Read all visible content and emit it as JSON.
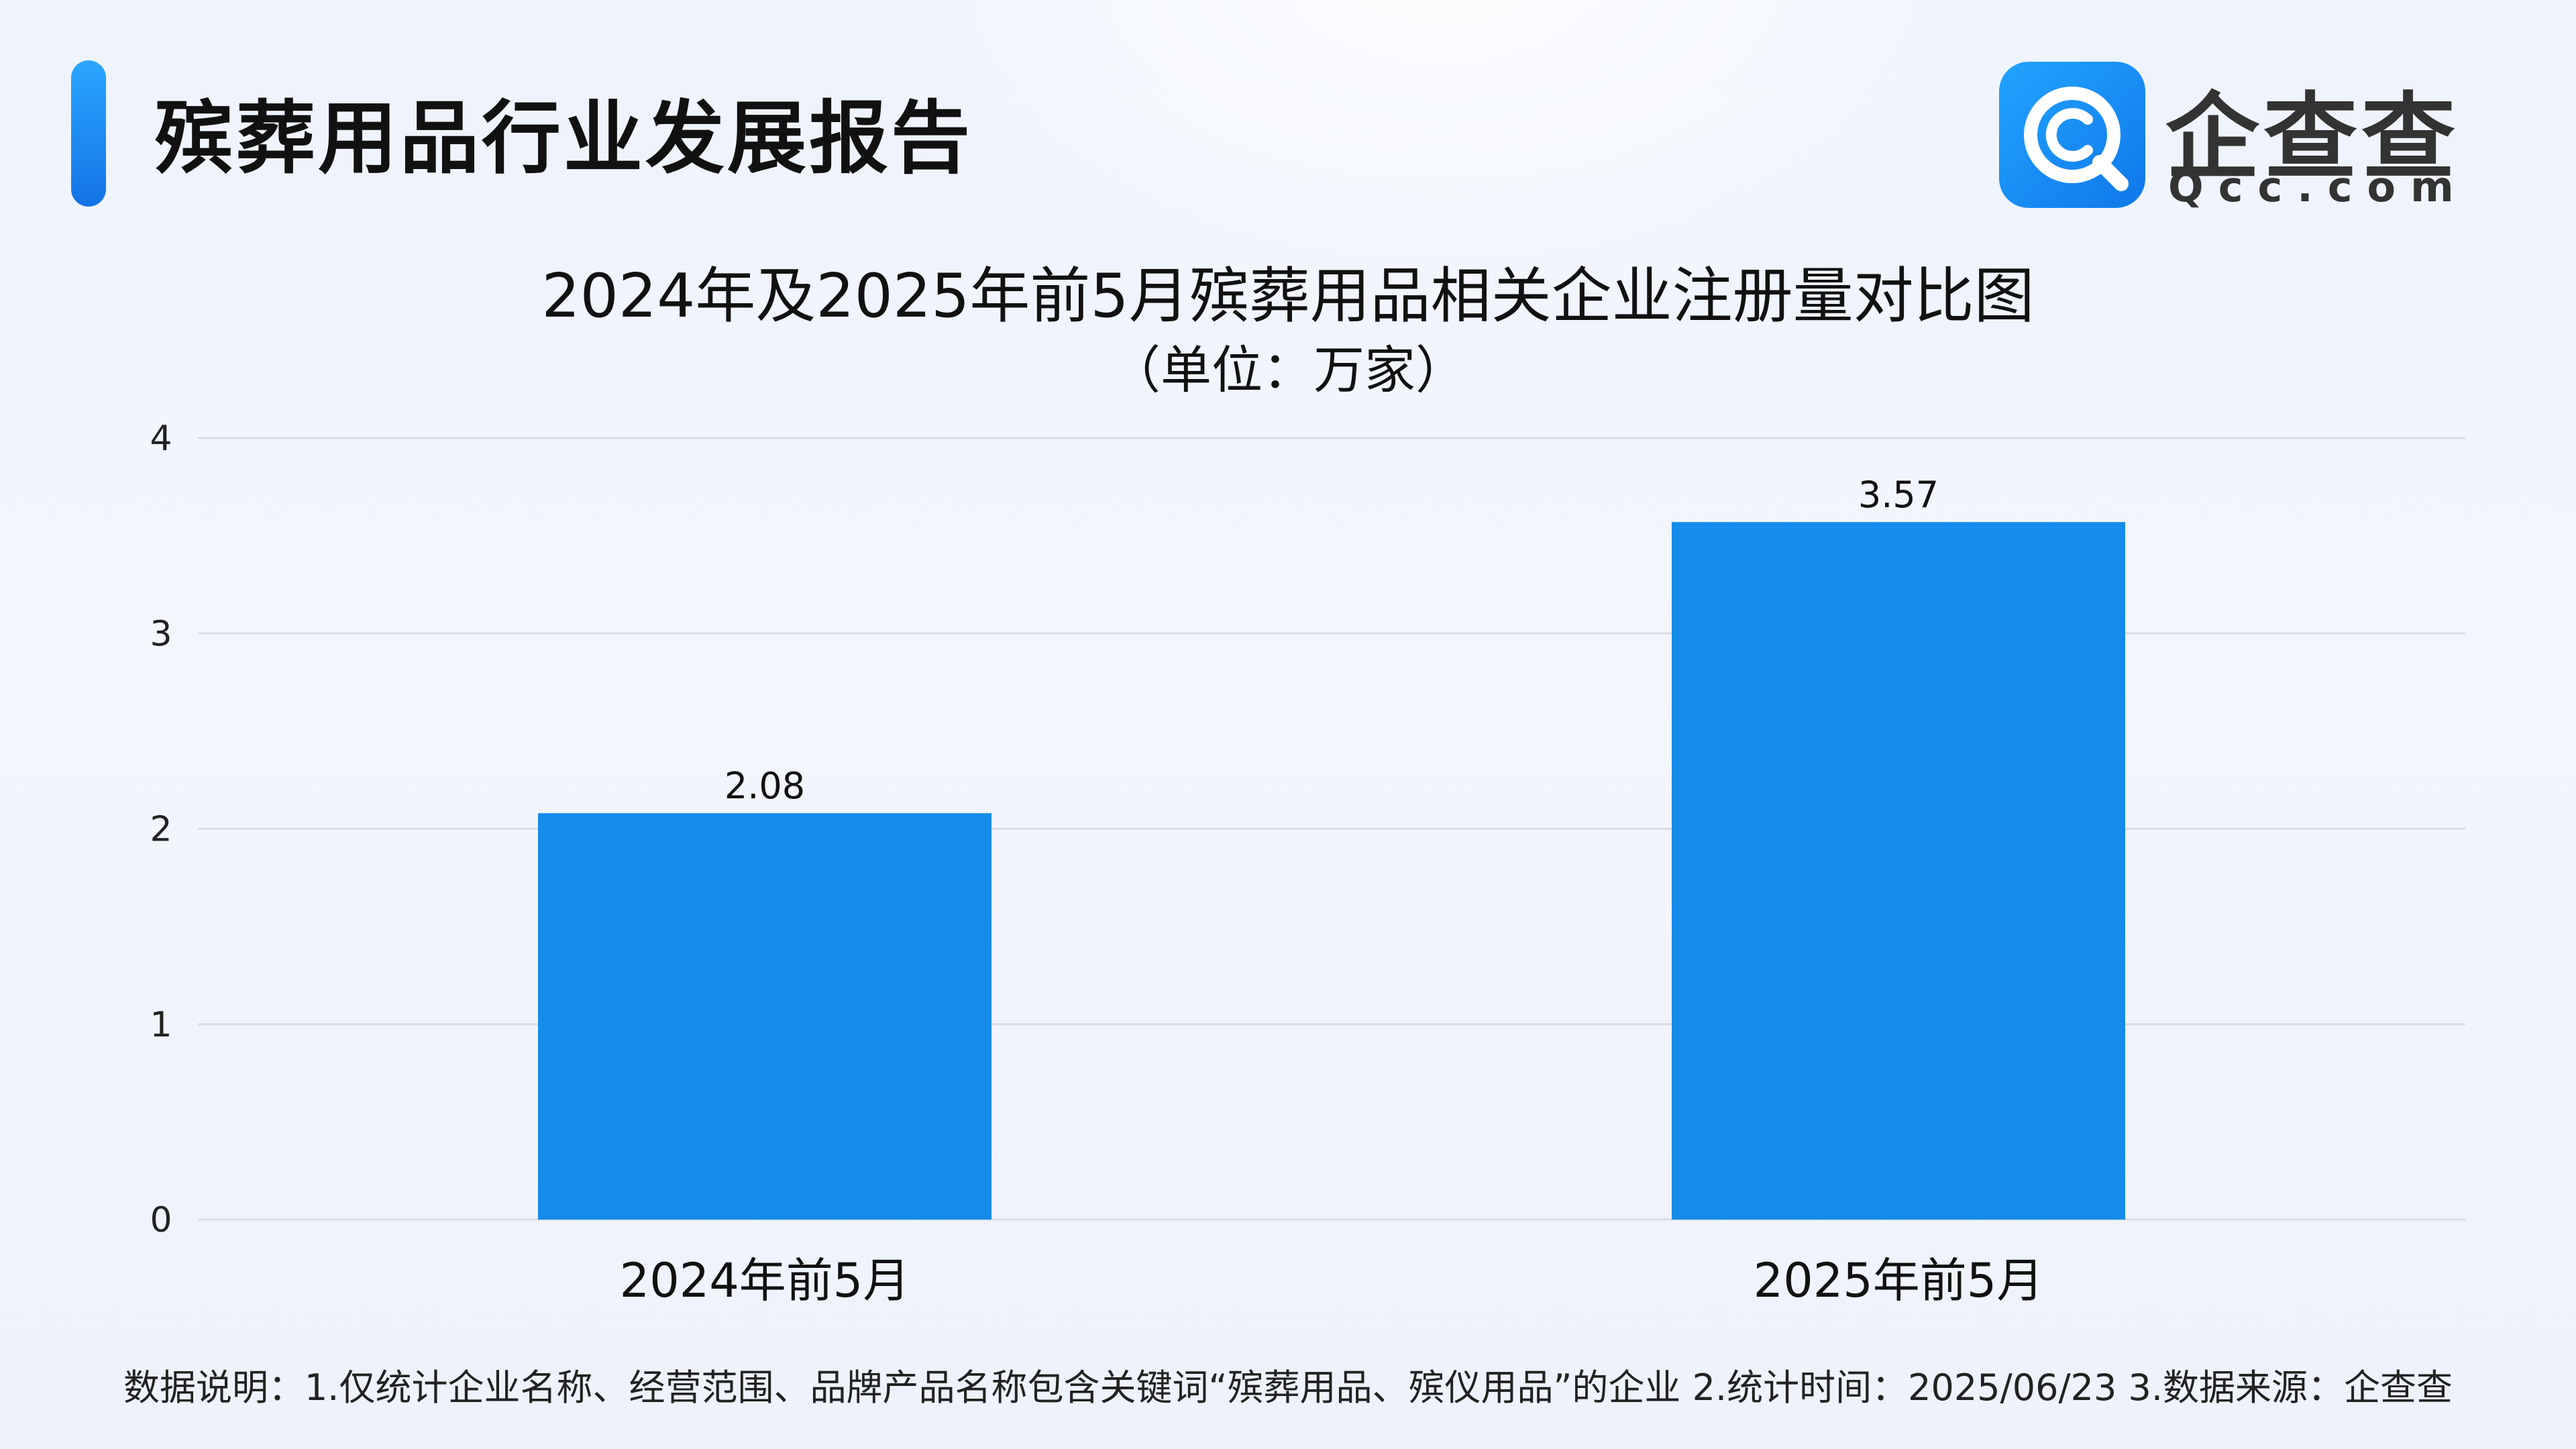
{
  "header": {
    "report_title": "殡葬用品行业发展报告",
    "logo_name": "企查查",
    "logo_sub": "Qcc.com"
  },
  "colors": {
    "bar": "#158BEA",
    "grid": "#d8dce4",
    "accent": "#1E8BF0"
  },
  "chart_data": {
    "type": "bar",
    "title": "2024年及2025年前5月殡葬用品相关企业注册量对比图",
    "subtitle": "（单位：万家）",
    "categories": [
      "2024年前5月",
      "2025年前5月"
    ],
    "values": [
      2.08,
      3.57
    ],
    "value_labels": [
      "2.08",
      "3.57"
    ],
    "ylim": [
      0,
      4
    ],
    "yticks": [
      "0",
      "1",
      "2",
      "3",
      "4"
    ],
    "grid": true,
    "legend": "none"
  },
  "footer": {
    "note": "数据说明：1.仅统计企业名称、经营范围、品牌产品名称包含关键词“殡葬用品、殡仪用品”的企业   2.统计时间：2025/06/23    3.数据来源：企查查"
  }
}
